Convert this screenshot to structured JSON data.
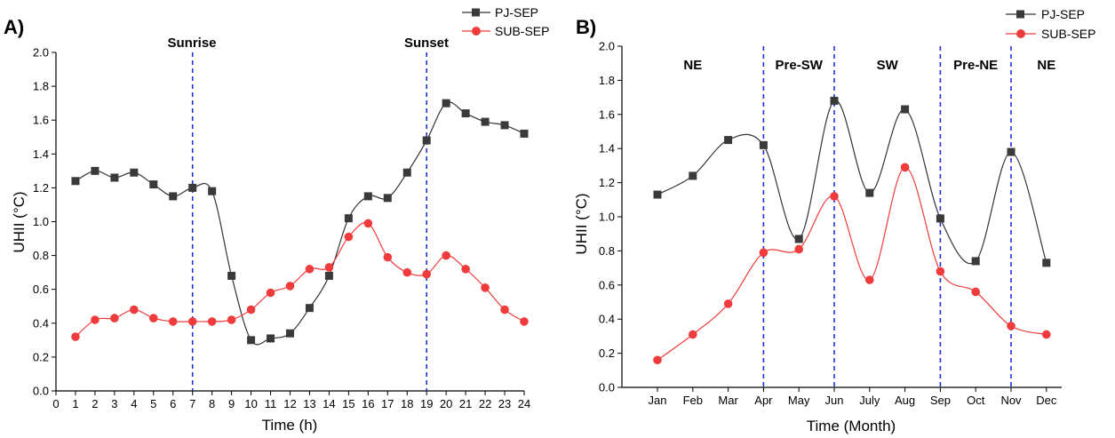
{
  "colors": {
    "pj": "#333333",
    "pj_marker": "#3a3a3a",
    "sub": "#ef3b3b",
    "sub_marker": "#ef3b3b",
    "vline": "#1f2fd6"
  },
  "chart_data": [
    {
      "panel_label": "A)",
      "type": "line",
      "xlabel": "Time (h)",
      "ylabel": "UHII (°C)",
      "xlim": [
        0,
        24
      ],
      "ylim": [
        0,
        2.0
      ],
      "x_ticks": [
        "0",
        "1",
        "2",
        "3",
        "4",
        "5",
        "6",
        "7",
        "8",
        "9",
        "10",
        "11",
        "12",
        "13",
        "14",
        "15",
        "16",
        "17",
        "18",
        "19",
        "20",
        "21",
        "22",
        "23",
        "24"
      ],
      "y_ticks": [
        "0.0",
        "0.2",
        "0.4",
        "0.6",
        "0.8",
        "1.0",
        "1.2",
        "1.4",
        "1.6",
        "1.8",
        "2.0"
      ],
      "x": [
        1,
        2,
        3,
        4,
        5,
        6,
        7,
        8,
        9,
        10,
        11,
        12,
        13,
        14,
        15,
        16,
        17,
        18,
        19,
        20,
        21,
        22,
        23,
        24
      ],
      "series": [
        {
          "name": "PJ-SEP",
          "marker": "square",
          "values": [
            1.24,
            1.3,
            1.26,
            1.29,
            1.22,
            1.15,
            1.2,
            1.18,
            0.68,
            0.3,
            0.31,
            0.34,
            0.49,
            0.68,
            1.02,
            1.15,
            1.14,
            1.29,
            1.48,
            1.7,
            1.64,
            1.59,
            1.57,
            1.52
          ]
        },
        {
          "name": "SUB-SEP",
          "marker": "circle",
          "values": [
            0.32,
            0.42,
            0.43,
            0.48,
            0.43,
            0.41,
            0.41,
            0.41,
            0.42,
            0.48,
            0.58,
            0.62,
            0.72,
            0.73,
            0.91,
            0.99,
            0.79,
            0.7,
            0.69,
            0.8,
            0.72,
            0.61,
            0.48,
            0.41
          ]
        }
      ],
      "vlines": [
        {
          "x": 7,
          "label": "Sunrise"
        },
        {
          "x": 19,
          "label": "Sunset"
        }
      ],
      "legend": {
        "placement": "top-right",
        "entries": [
          "PJ-SEP",
          "SUB-SEP"
        ]
      },
      "grid": false
    },
    {
      "panel_label": "B)",
      "type": "line",
      "xlabel": "Time (Month)",
      "ylabel": "UHII (°C)",
      "ylim": [
        0,
        2.0
      ],
      "categories": [
        "Jan",
        "Feb",
        "Mar",
        "Apr",
        "May",
        "Jun",
        "July",
        "Aug",
        "Sep",
        "Oct",
        "Nov",
        "Dec"
      ],
      "y_ticks": [
        "0.0",
        "0.2",
        "0.4",
        "0.6",
        "0.8",
        "1.0",
        "1.2",
        "1.4",
        "1.6",
        "1.8",
        "2.0"
      ],
      "series": [
        {
          "name": "PJ-SEP",
          "marker": "square",
          "values": [
            1.13,
            1.24,
            1.45,
            1.42,
            0.87,
            1.68,
            1.14,
            1.63,
            0.99,
            0.74,
            1.38,
            0.73
          ]
        },
        {
          "name": "SUB-SEP",
          "marker": "circle",
          "values": [
            0.16,
            0.31,
            0.49,
            0.79,
            0.81,
            1.12,
            0.63,
            1.29,
            0.68,
            0.56,
            0.36,
            0.31
          ]
        }
      ],
      "vlines": [
        {
          "category_index": 3
        },
        {
          "category_index": 5
        },
        {
          "category_index": 8
        },
        {
          "category_index": 10
        }
      ],
      "season_labels": [
        {
          "label": "NE",
          "center": 1.0
        },
        {
          "label": "Pre-SW",
          "center": 4.0
        },
        {
          "label": "SW",
          "center": 6.5
        },
        {
          "label": "Pre-NE",
          "center": 9.0
        },
        {
          "label": "NE",
          "center": 11.0
        }
      ],
      "legend": {
        "placement": "top-right",
        "entries": [
          "PJ-SEP",
          "SUB-SEP"
        ]
      },
      "grid": false
    }
  ]
}
